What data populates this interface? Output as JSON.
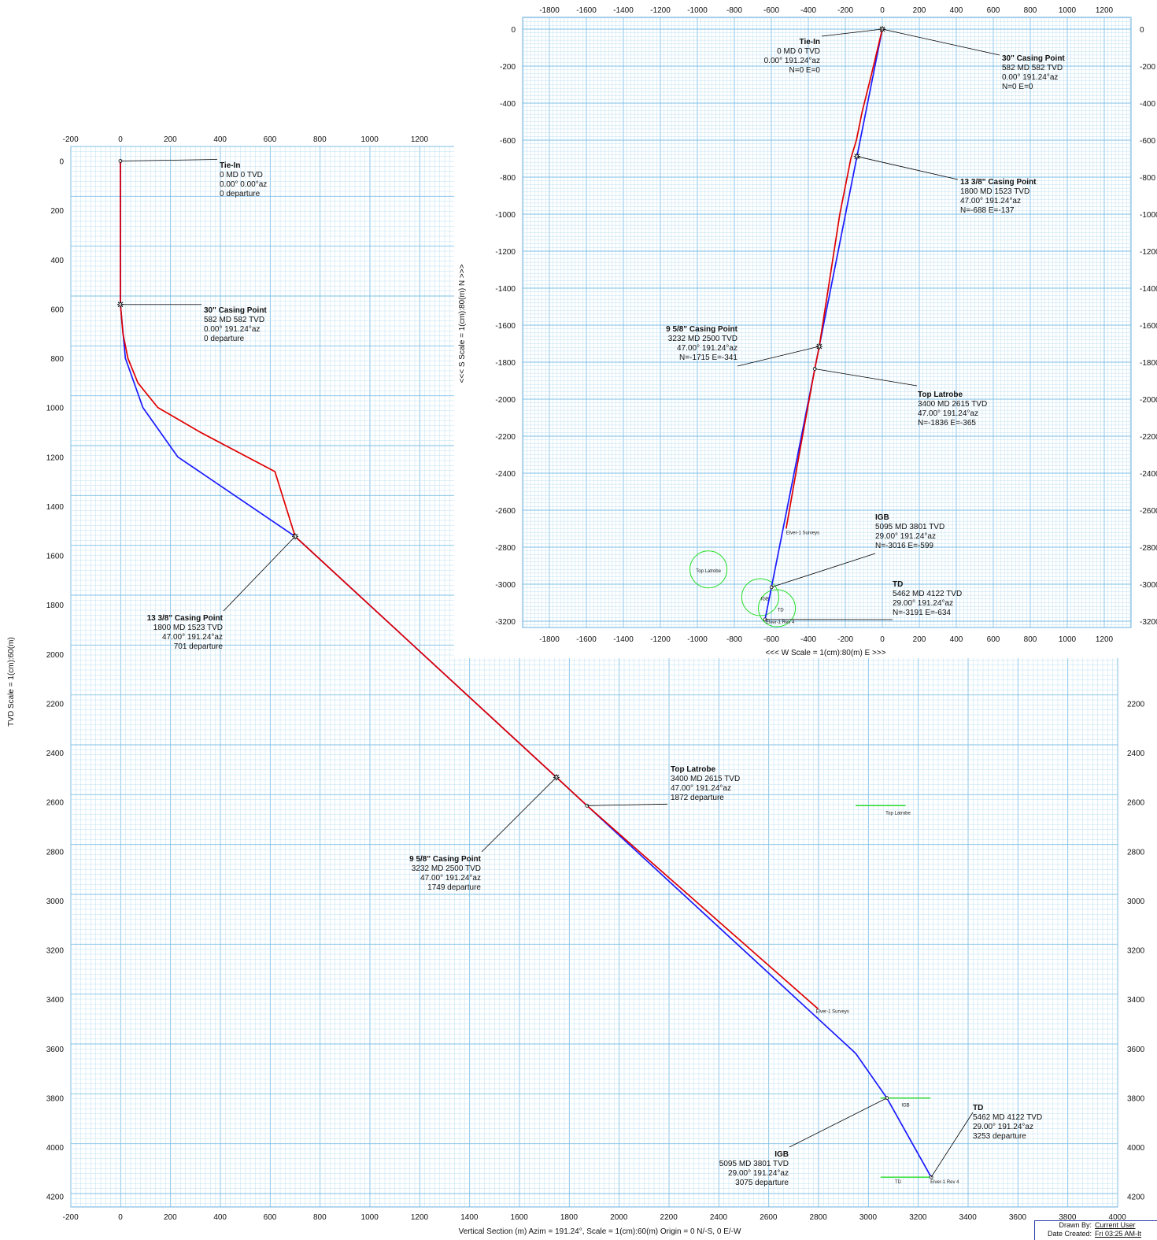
{
  "colors": {
    "grid_minor": "#bfe0f2",
    "grid_major": "#7fc0e6",
    "plan_line": "#1a1aff",
    "actual_line": "#e00000",
    "target": "#22dd22"
  },
  "chart_data": [
    {
      "type": "line",
      "title": "",
      "xlabel": "Vertical Section (m) Azim = 191.24°, Scale = 1(cm):60(m)  Origin = 0 N/-S, 0 E/-W",
      "ylabel": "TVD Scale = 1(cm):60(m)",
      "xlim": [
        -200,
        4000
      ],
      "ylim": [
        4200,
        0
      ],
      "xticks": [
        "-200",
        "0",
        "200",
        "400",
        "600",
        "800",
        "1000",
        "1200",
        "1400",
        "1600",
        "1800",
        "2000",
        "2200",
        "2400",
        "2600",
        "2800",
        "3000",
        "3200",
        "3400",
        "3600",
        "3800",
        "4000"
      ],
      "yticks": [
        "0",
        "200",
        "400",
        "600",
        "800",
        "1000",
        "1200",
        "1400",
        "1600",
        "1800",
        "2000",
        "2200",
        "2400",
        "2600",
        "2800",
        "3000",
        "3200",
        "3400",
        "3600",
        "3800",
        "4000",
        "4200"
      ],
      "series": [
        {
          "x": [
            0,
            0,
            20,
            90,
            230,
            701,
            1749,
            1872,
            2950,
            3075,
            3253
          ],
          "y": [
            0,
            582,
            800,
            1000,
            1200,
            1523,
            2500,
            2615,
            3620,
            3801,
            4122
          ]
        },
        {
          "x": [
            0,
            0,
            10,
            30,
            70,
            150,
            320,
            620,
            701,
            1749,
            1872,
            2800
          ],
          "y": [
            0,
            582,
            700,
            800,
            900,
            1000,
            1100,
            1260,
            1523,
            2500,
            2615,
            3440
          ]
        }
      ],
      "labels": [
        {
          "name": "Tie-In",
          "lines": [
            "0 MD  0 TVD",
            "0.00°  0.00°az",
            "0 departure"
          ]
        },
        {
          "name": "30\" Casing Point",
          "lines": [
            "582 MD  582 TVD",
            "0.00°  191.24°az",
            "0 departure"
          ]
        },
        {
          "name": "13 3/8\" Casing Point",
          "lines": [
            "1800 MD  1523 TVD",
            "47.00°  191.24°az",
            "701 departure"
          ]
        },
        {
          "name": "9 5/8\" Casing Point",
          "lines": [
            "3232 MD  2500 TVD",
            "47.00°  191.24°az",
            "1749 departure"
          ]
        },
        {
          "name": "Top Latrobe",
          "lines": [
            "3400 MD  2615 TVD",
            "47.00°  191.24°az",
            "1872 departure"
          ]
        },
        {
          "name": "IGB",
          "lines": [
            "5095 MD  3801 TVD",
            "29.00°  191.24°az",
            "3075 departure"
          ]
        },
        {
          "name": "TD",
          "lines": [
            "5462 MD  4122 TVD",
            "29.00°  191.24°az",
            "3253 departure"
          ]
        }
      ],
      "targets": [
        {
          "name": "Top Latrobe",
          "x": [
            2950,
            3150
          ],
          "y": 2615
        },
        {
          "name": "IGB",
          "x": [
            3050,
            3250
          ],
          "y": 3801
        },
        {
          "name": "TD",
          "x": [
            3050,
            3250
          ],
          "y": 4122
        }
      ],
      "small_labels": [
        "Elver-1 Surveys",
        "Elver-1 Rev 4"
      ]
    },
    {
      "type": "line",
      "title": "",
      "xlabel": "<<<  W    Scale = 1(cm):80(m)   E  >>>",
      "ylabel": "<<<  S    Scale = 1(cm):80(m)   N  >>>",
      "xlim": [
        -1800,
        1200
      ],
      "ylim": [
        0,
        -3200
      ],
      "xticks": [
        "-1800",
        "-1600",
        "-1400",
        "-1200",
        "-1000",
        "-800",
        "-600",
        "-400",
        "-200",
        "0",
        "200",
        "400",
        "600",
        "800",
        "1000",
        "1200"
      ],
      "yticks": [
        "0",
        "-200",
        "-400",
        "-600",
        "-800",
        "-1000",
        "-1200",
        "-1400",
        "-1600",
        "-1800",
        "-2000",
        "-2200",
        "-2400",
        "-2600",
        "-2800",
        "-3000",
        "-3200"
      ],
      "series": [
        {
          "x": [
            0,
            -137,
            -341,
            -365,
            -599,
            -634
          ],
          "y": [
            0,
            -688,
            -1715,
            -1836,
            -3016,
            -3191
          ]
        },
        {
          "x": [
            0,
            -60,
            -110,
            -140,
            -170,
            -230,
            -341,
            -365,
            -450,
            -520
          ],
          "y": [
            0,
            -250,
            -450,
            -600,
            -700,
            -1000,
            -1715,
            -1836,
            -2300,
            -2700
          ]
        }
      ],
      "labels": [
        {
          "name": "Tie-In",
          "lines": [
            "0 MD  0 TVD",
            "0.00°  191.24°az",
            "N=0 E=0"
          ]
        },
        {
          "name": "30\" Casing Point",
          "lines": [
            "582 MD  582 TVD",
            "0.00°  191.24°az",
            "N=0 E=0"
          ]
        },
        {
          "name": "13 3/8\" Casing Point",
          "lines": [
            "1800 MD  1523 TVD",
            "47.00°  191.24°az",
            "N=-688 E=-137"
          ]
        },
        {
          "name": "9 5/8\" Casing Point",
          "lines": [
            "3232 MD  2500 TVD",
            "47.00°  191.24°az",
            "N=-1715 E=-341"
          ]
        },
        {
          "name": "Top Latrobe",
          "lines": [
            "3400 MD  2615 TVD",
            "47.00°  191.24°az",
            "N=-1836 E=-365"
          ]
        },
        {
          "name": "IGB",
          "lines": [
            "5095 MD  3801 TVD",
            "29.00°  191.24°az",
            "N=-3016 E=-599"
          ]
        },
        {
          "name": "TD",
          "lines": [
            "5462 MD  4122 TVD",
            "29.00°  191.24°az",
            "N=-3191 E=-634"
          ]
        }
      ],
      "targets": [
        {
          "name": "Top Latrobe",
          "x": -940,
          "y": -2920,
          "r": 100
        },
        {
          "name": "IGB",
          "x": -660,
          "y": -3070,
          "r": 100
        },
        {
          "name": "TD",
          "x": -570,
          "y": -3130,
          "r": 100
        }
      ],
      "small_labels": [
        "Elver-1 Surveys",
        "Elver-1 Rev 4"
      ]
    }
  ],
  "titleblock": {
    "drawn_by_label": "Drawn By:",
    "drawn_by": "Current User",
    "date_label": "Date Created:",
    "date": "Fri 03:25 AM-It"
  }
}
